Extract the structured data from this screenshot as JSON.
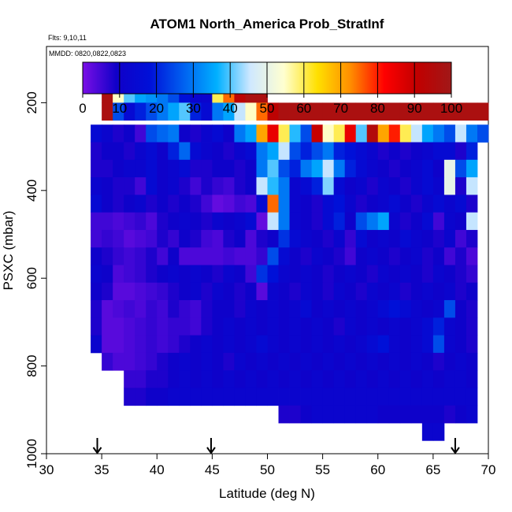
{
  "chart_data": {
    "type": "heatmap",
    "title": "ATOM1 North_America Prob_StratInf",
    "annotations": [
      "Flts: 9,10,11",
      "MMDD: 0820,0822,0823"
    ],
    "xlabel": "Latitude (deg N)",
    "ylabel": "PSXC (mbar)",
    "xlim": [
      30,
      70
    ],
    "ylim": [
      1000,
      0
    ],
    "x_ticks": [
      30,
      35,
      40,
      45,
      50,
      55,
      60,
      65,
      70
    ],
    "y_ticks": [
      200,
      400,
      600,
      800,
      1000
    ],
    "colorbar": {
      "range": [
        0,
        100
      ],
      "ticks": [
        0,
        10,
        20,
        30,
        40,
        50,
        60,
        70,
        80,
        90,
        100
      ],
      "colors": [
        "#7b0fe6",
        "#1000c8",
        "#0010d8",
        "#0060f0",
        "#00b0ff",
        "#cfe8ff",
        "#ffffd0",
        "#ffe000",
        "#ff8c00",
        "#ff0000",
        "#c00000",
        "#a01818"
      ]
    },
    "x_bin_width": 1,
    "row_height_mbar": 40,
    "rows": [
      {
        "p": 180,
        "x0": 35,
        "values": [
          97,
          55,
          40,
          35,
          33,
          30,
          25,
          18,
          12,
          12,
          60,
          75,
          92,
          97,
          97
        ]
      },
      {
        "p": 220,
        "x0": 35,
        "values": [
          97,
          25,
          15,
          20,
          25,
          30,
          35,
          40,
          20,
          15,
          30,
          35,
          45,
          55,
          75,
          92,
          97,
          97,
          97,
          97,
          97,
          97,
          97,
          97,
          97,
          97,
          97,
          97,
          97,
          97,
          97,
          97,
          97,
          97,
          97
        ]
      },
      {
        "p": 270,
        "x0": 34,
        "values": [
          15,
          12,
          8,
          10,
          5,
          25,
          28,
          30,
          10,
          8,
          12,
          15,
          10,
          30,
          35,
          70,
          85,
          60,
          38,
          25,
          90,
          55,
          60,
          85,
          40,
          95,
          70,
          80,
          60,
          45,
          35,
          30,
          25,
          45,
          30,
          25
        ]
      },
      {
        "p": 310,
        "x0": 34,
        "values": [
          8,
          10,
          10,
          8,
          12,
          15,
          10,
          20,
          28,
          15,
          12,
          10,
          8,
          12,
          15,
          30,
          35,
          45,
          25,
          20,
          25,
          30,
          20,
          18,
          15,
          12,
          8,
          10,
          8,
          10,
          12,
          15,
          15,
          8,
          20
        ]
      },
      {
        "p": 350,
        "x0": 34,
        "values": [
          8,
          8,
          10,
          12,
          12,
          15,
          10,
          12,
          15,
          8,
          8,
          10,
          10,
          8,
          10,
          30,
          40,
          25,
          20,
          30,
          35,
          45,
          30,
          20,
          15,
          12,
          10,
          8,
          10,
          12,
          15,
          10,
          50,
          25,
          35
        ]
      },
      {
        "p": 390,
        "x0": 34,
        "values": [
          12,
          10,
          8,
          8,
          5,
          15,
          10,
          12,
          8,
          5,
          8,
          6,
          5,
          8,
          10,
          45,
          38,
          30,
          12,
          15,
          20,
          42,
          15,
          10,
          12,
          8,
          12,
          10,
          8,
          12,
          15,
          12,
          50,
          8,
          45
        ]
      },
      {
        "p": 430,
        "x0": 34,
        "values": [
          15,
          10,
          8,
          10,
          12,
          8,
          10,
          8,
          10,
          8,
          5,
          2,
          3,
          5,
          4,
          15,
          75,
          30,
          12,
          10,
          8,
          15,
          18,
          12,
          8,
          10,
          12,
          15,
          10,
          8,
          12,
          15,
          12,
          15,
          8
        ]
      },
      {
        "p": 470,
        "x0": 34,
        "values": [
          5,
          5,
          4,
          5,
          6,
          4,
          8,
          10,
          12,
          10,
          8,
          12,
          10,
          12,
          15,
          2,
          45,
          30,
          12,
          10,
          8,
          15,
          20,
          10,
          25,
          30,
          35,
          12,
          8,
          10,
          15,
          5,
          12,
          10,
          45
        ]
      },
      {
        "p": 510,
        "x0": 34,
        "values": [
          5,
          6,
          5,
          3,
          4,
          5,
          8,
          6,
          10,
          8,
          5,
          4,
          8,
          10,
          4,
          8,
          10,
          22,
          15,
          12,
          10,
          8,
          12,
          6,
          15,
          10,
          12,
          10,
          15,
          12,
          10,
          8,
          12,
          5,
          8
        ]
      },
      {
        "p": 550,
        "x0": 34,
        "values": [
          10,
          8,
          6,
          5,
          6,
          8,
          5,
          10,
          4,
          4,
          4,
          4,
          5,
          4,
          4,
          6,
          25,
          15,
          10,
          8,
          12,
          10,
          8,
          5,
          10,
          12,
          10,
          8,
          10,
          12,
          8,
          10,
          5,
          8,
          4
        ]
      },
      {
        "p": 590,
        "x0": 34,
        "values": [
          12,
          10,
          4,
          5,
          6,
          8,
          10,
          12,
          10,
          12,
          10,
          8,
          12,
          10,
          5,
          22,
          18,
          12,
          10,
          12,
          10,
          8,
          10,
          12,
          10,
          8,
          12,
          10,
          12,
          10,
          8,
          12,
          10,
          8,
          6
        ]
      },
      {
        "p": 630,
        "x0": 34,
        "values": [
          10,
          8,
          3,
          3,
          4,
          5,
          6,
          8,
          10,
          12,
          8,
          12,
          10,
          8,
          10,
          3,
          12,
          10,
          8,
          12,
          10,
          8,
          12,
          10,
          8,
          12,
          10,
          12,
          8,
          10,
          12,
          10,
          12,
          8,
          10
        ]
      },
      {
        "p": 670,
        "x0": 34,
        "values": [
          8,
          3,
          4,
          5,
          4,
          6,
          5,
          8,
          6,
          5,
          8,
          10,
          10,
          8,
          12,
          10,
          12,
          10,
          12,
          15,
          10,
          12,
          10,
          12,
          10,
          12,
          15,
          18,
          15,
          12,
          10,
          12,
          25,
          10,
          8
        ]
      },
      {
        "p": 710,
        "x0": 34,
        "values": [
          8,
          3,
          3,
          4,
          5,
          6,
          5,
          6,
          6,
          5,
          8,
          10,
          12,
          10,
          12,
          10,
          12,
          10,
          12,
          10,
          12,
          10,
          8,
          12,
          10,
          12,
          10,
          12,
          10,
          12,
          15,
          20,
          12,
          10,
          8
        ]
      },
      {
        "p": 750,
        "x0": 34,
        "values": [
          12,
          3,
          3,
          4,
          5,
          6,
          5,
          6,
          8,
          10,
          12,
          10,
          12,
          10,
          12,
          15,
          12,
          10,
          12,
          10,
          12,
          10,
          12,
          10,
          12,
          15,
          18,
          12,
          10,
          12,
          15,
          25,
          12,
          10,
          8
        ]
      },
      {
        "p": 790,
        "x0": 35,
        "values": [
          6,
          4,
          4,
          5,
          6,
          8,
          10,
          12,
          10,
          12,
          10,
          8,
          12,
          10,
          12,
          10,
          12,
          10,
          12,
          10,
          12,
          10,
          12,
          10,
          12,
          10,
          12,
          10,
          12,
          10,
          8,
          10,
          12,
          10
        ]
      },
      {
        "p": 830,
        "x0": 37,
        "values": [
          6,
          6,
          8,
          8,
          10,
          12,
          10,
          12,
          10,
          12,
          10,
          12,
          10,
          12,
          10,
          12,
          10,
          12,
          10,
          12,
          10,
          12,
          10,
          12,
          10,
          12,
          10,
          12,
          10,
          12,
          12,
          10
        ]
      },
      {
        "p": 870,
        "x0": 37,
        "values": [
          8,
          8,
          10,
          10,
          12,
          12,
          12,
          12,
          12,
          12,
          12,
          12,
          12,
          12,
          12,
          12,
          12,
          12,
          12,
          12,
          12,
          12,
          12,
          12,
          12,
          12,
          12,
          12,
          12,
          12,
          12,
          12
        ]
      },
      {
        "p": 910,
        "x0": 51,
        "values": [
          8,
          8,
          10,
          12,
          12,
          12,
          12,
          12,
          12,
          10,
          10,
          10,
          10,
          10,
          10,
          8,
          10,
          12
        ]
      },
      {
        "p": 950,
        "x0": 64,
        "values": [
          12,
          12
        ]
      }
    ],
    "arrow_markers_x": [
      34.6,
      44.9,
      67
    ]
  }
}
